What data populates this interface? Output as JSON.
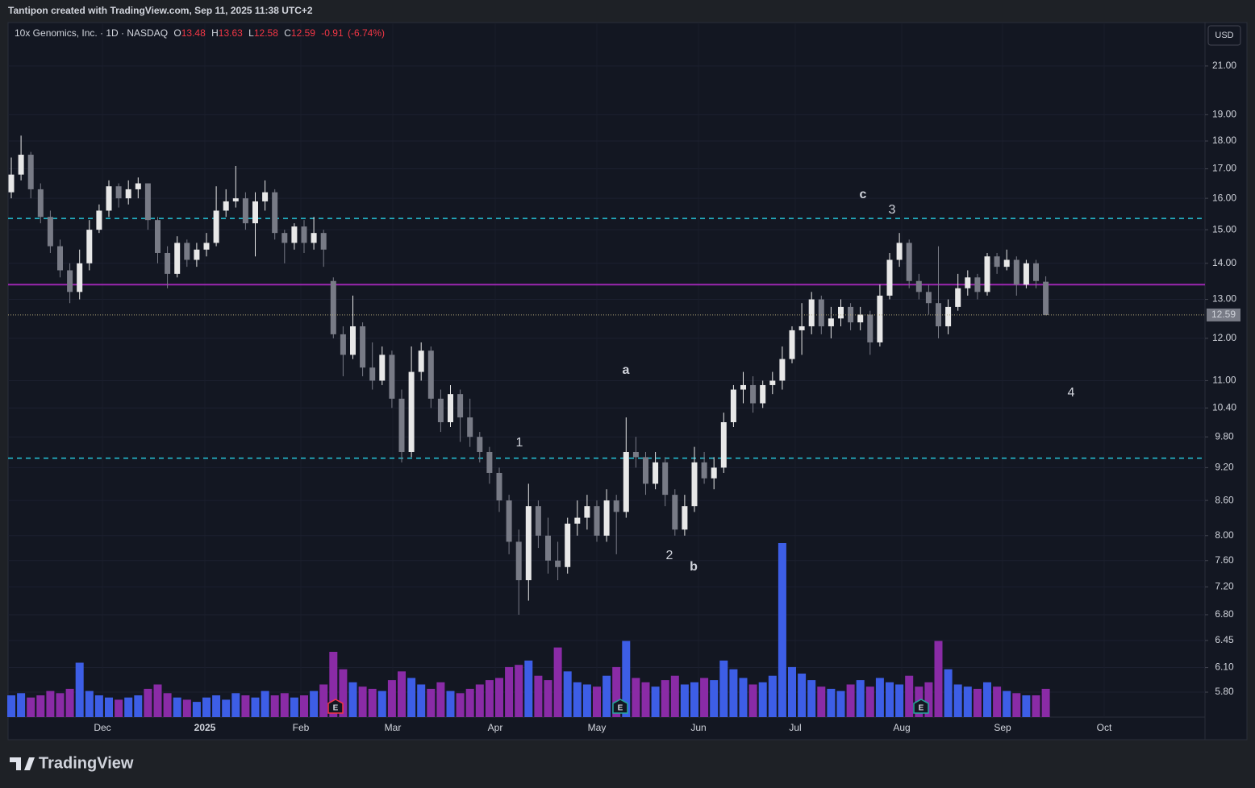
{
  "header": "Tantipon created with TradingView.com, Sep 11, 2025 11:38 UTC+2",
  "currency": "USD",
  "footer_logo": "TradingView",
  "chart_data": {
    "type": "candlestick",
    "symbol": "10x Genomics, Inc. · 1D · NASDAQ",
    "legend": {
      "open_label": "O",
      "open": 13.48,
      "high_label": "H",
      "high": 13.63,
      "low_label": "L",
      "low": 12.58,
      "close_label": "C",
      "close": 12.59,
      "change": -0.91,
      "change_pct": {
        "value": -6.74,
        "label": "(-6.74%)"
      }
    },
    "last_price": 12.59,
    "log_scale": true,
    "grid": true,
    "up_color": "#e8e8e8",
    "down_color": "#787b86",
    "volume_up_color": "#3d5ee6",
    "volume_down_color": "#8a2ba6",
    "ylim": [
      5.51,
      22.96
    ],
    "yticks": [
      {
        "value": 21,
        "label": "21.00"
      },
      {
        "value": 19,
        "label": "19.00"
      },
      {
        "value": 18,
        "label": "18.00"
      },
      {
        "value": 17,
        "label": "17.00"
      },
      {
        "value": 16,
        "label": "16.00"
      },
      {
        "value": 15,
        "label": "15.00"
      },
      {
        "value": 14,
        "label": "14.00"
      },
      {
        "value": 13,
        "label": "13.00"
      },
      {
        "value": 12,
        "label": "12.00"
      },
      {
        "value": 11,
        "label": "11.00"
      },
      {
        "value": 10.4,
        "label": "10.40"
      },
      {
        "value": 9.8,
        "label": "9.80"
      },
      {
        "value": 9.2,
        "label": "9.20"
      },
      {
        "value": 8.6,
        "label": "8.60"
      },
      {
        "value": 8,
        "label": "8.00"
      },
      {
        "value": 7.6,
        "label": "7.60"
      },
      {
        "value": 7.2,
        "label": "7.20"
      },
      {
        "value": 6.8,
        "label": "6.80"
      },
      {
        "value": 6.45,
        "label": "6.45"
      },
      {
        "value": 6.1,
        "label": "6.10"
      },
      {
        "value": 5.8,
        "label": "5.80"
      }
    ],
    "x_labels": [
      "Dec",
      "2025",
      "Feb",
      "Mar",
      "Apr",
      "May",
      "Jun",
      "Jul",
      "Aug",
      "Sep",
      "Oct"
    ],
    "levels": [
      {
        "value": 15.35,
        "color": "#26c6da",
        "style": "dashed"
      },
      {
        "value": 9.38,
        "color": "#26c6da",
        "style": "dashed"
      },
      {
        "value": 13.4,
        "color": "#9c27b0",
        "style": "solid"
      }
    ],
    "annotations": [
      {
        "text": "a",
        "color": "#f7d51d"
      },
      {
        "text": "b",
        "color": "#f7d51d"
      },
      {
        "text": "c",
        "color": "#f7d51d"
      },
      {
        "text": "1",
        "color": "#8a8d96"
      },
      {
        "text": "2",
        "color": "#8a8d96"
      },
      {
        "text": "3",
        "color": "#8a8d96"
      },
      {
        "text": "4",
        "color": "#8a8d96"
      }
    ],
    "earnings": [
      "E",
      "E",
      "E"
    ],
    "ohlc": [
      [
        16.2,
        17.4,
        16.0,
        16.8
      ],
      [
        16.8,
        18.2,
        16.6,
        17.5
      ],
      [
        17.5,
        17.6,
        16.0,
        16.3
      ],
      [
        16.3,
        16.5,
        15.2,
        15.4
      ],
      [
        15.4,
        15.6,
        14.3,
        14.5
      ],
      [
        14.5,
        14.7,
        13.6,
        13.8
      ],
      [
        13.8,
        14.0,
        12.9,
        13.2
      ],
      [
        13.2,
        14.4,
        13.0,
        14.0
      ],
      [
        14.0,
        15.3,
        13.8,
        15.0
      ],
      [
        15.0,
        15.8,
        14.9,
        15.6
      ],
      [
        15.6,
        16.6,
        15.4,
        16.4
      ],
      [
        16.4,
        16.5,
        15.7,
        16.0
      ],
      [
        16.0,
        16.6,
        15.8,
        16.3
      ],
      [
        16.3,
        16.7,
        16.0,
        16.5
      ],
      [
        16.5,
        16.5,
        15.0,
        15.3
      ],
      [
        15.3,
        15.4,
        14.0,
        14.3
      ],
      [
        14.3,
        14.5,
        13.3,
        13.7
      ],
      [
        13.7,
        14.8,
        13.6,
        14.6
      ],
      [
        14.6,
        14.7,
        13.9,
        14.1
      ],
      [
        14.1,
        14.6,
        13.9,
        14.4
      ],
      [
        14.4,
        14.9,
        14.2,
        14.6
      ],
      [
        14.6,
        16.4,
        14.5,
        15.6
      ],
      [
        15.6,
        16.3,
        15.4,
        15.9
      ],
      [
        15.9,
        17.1,
        15.7,
        16.0
      ],
      [
        16.0,
        16.2,
        15.0,
        15.2
      ],
      [
        15.2,
        16.2,
        14.2,
        15.9
      ],
      [
        15.9,
        16.6,
        15.6,
        16.2
      ],
      [
        16.2,
        16.3,
        14.7,
        14.9
      ],
      [
        14.9,
        15.0,
        14.0,
        14.6
      ],
      [
        14.6,
        15.2,
        14.4,
        15.1
      ],
      [
        15.1,
        15.3,
        14.3,
        14.6
      ],
      [
        14.6,
        15.4,
        14.4,
        14.9
      ],
      [
        14.9,
        15.0,
        13.9,
        14.4
      ],
      [
        13.5,
        13.6,
        12.0,
        12.1
      ],
      [
        12.1,
        12.3,
        11.1,
        11.6
      ],
      [
        11.6,
        13.1,
        11.5,
        12.3
      ],
      [
        12.3,
        12.4,
        11.1,
        11.3
      ],
      [
        11.3,
        11.9,
        10.8,
        11.0
      ],
      [
        11.0,
        11.8,
        10.9,
        11.6
      ],
      [
        11.6,
        11.7,
        10.4,
        10.6
      ],
      [
        10.6,
        10.8,
        9.3,
        9.5
      ],
      [
        9.5,
        11.8,
        9.4,
        11.2
      ],
      [
        11.2,
        11.9,
        11.0,
        11.7
      ],
      [
        11.7,
        11.8,
        10.4,
        10.6
      ],
      [
        10.6,
        10.8,
        9.9,
        10.1
      ],
      [
        10.1,
        10.9,
        10.0,
        10.7
      ],
      [
        10.7,
        10.8,
        9.7,
        10.2
      ],
      [
        10.2,
        10.6,
        9.6,
        9.8
      ],
      [
        9.8,
        9.9,
        9.3,
        9.5
      ],
      [
        9.5,
        9.6,
        8.9,
        9.1
      ],
      [
        9.1,
        9.2,
        8.4,
        8.6
      ],
      [
        8.6,
        8.7,
        7.7,
        7.9
      ],
      [
        7.9,
        8.1,
        6.8,
        7.3
      ],
      [
        7.3,
        8.9,
        7.0,
        8.5
      ],
      [
        8.5,
        8.6,
        7.8,
        8.0
      ],
      [
        8.0,
        8.3,
        7.4,
        7.6
      ],
      [
        7.6,
        7.9,
        7.3,
        7.5
      ],
      [
        7.5,
        8.3,
        7.4,
        8.2
      ],
      [
        8.2,
        8.6,
        8.0,
        8.3
      ],
      [
        8.3,
        8.7,
        8.1,
        8.5
      ],
      [
        8.5,
        8.6,
        7.9,
        8.0
      ],
      [
        8.0,
        8.8,
        7.9,
        8.6
      ],
      [
        8.6,
        8.7,
        7.7,
        8.4
      ],
      [
        8.4,
        10.2,
        8.3,
        9.5
      ],
      [
        9.5,
        9.8,
        9.2,
        9.4
      ],
      [
        9.4,
        9.5,
        8.7,
        8.9
      ],
      [
        8.9,
        9.5,
        8.8,
        9.3
      ],
      [
        9.3,
        9.4,
        8.5,
        8.7
      ],
      [
        8.7,
        8.8,
        8.0,
        8.1
      ],
      [
        8.1,
        8.7,
        8.0,
        8.5
      ],
      [
        8.5,
        9.6,
        8.4,
        9.3
      ],
      [
        9.3,
        9.5,
        8.9,
        9.0
      ],
      [
        9.0,
        9.4,
        8.8,
        9.2
      ],
      [
        9.2,
        10.3,
        9.1,
        10.1
      ],
      [
        10.1,
        10.9,
        10.0,
        10.8
      ],
      [
        10.8,
        11.2,
        10.5,
        10.9
      ],
      [
        10.9,
        11.1,
        10.3,
        10.5
      ],
      [
        10.5,
        11.0,
        10.4,
        10.9
      ],
      [
        10.9,
        11.2,
        10.7,
        11.0
      ],
      [
        11.0,
        11.8,
        10.8,
        11.5
      ],
      [
        11.5,
        12.3,
        11.4,
        12.2
      ],
      [
        12.2,
        12.9,
        11.6,
        12.3
      ],
      [
        12.3,
        13.2,
        12.1,
        13.0
      ],
      [
        13.0,
        13.1,
        12.1,
        12.3
      ],
      [
        12.3,
        12.8,
        12.0,
        12.5
      ],
      [
        12.5,
        13.0,
        12.3,
        12.8
      ],
      [
        12.8,
        12.9,
        12.2,
        12.4
      ],
      [
        12.4,
        12.8,
        12.2,
        12.6
      ],
      [
        12.6,
        12.7,
        11.6,
        11.9
      ],
      [
        11.9,
        13.4,
        11.8,
        13.1
      ],
      [
        13.1,
        14.3,
        13.0,
        14.1
      ],
      [
        14.1,
        14.9,
        13.9,
        14.6
      ],
      [
        14.6,
        14.7,
        13.3,
        13.5
      ],
      [
        13.5,
        13.7,
        13.0,
        13.2
      ],
      [
        13.2,
        13.4,
        12.6,
        12.9
      ],
      [
        12.9,
        14.5,
        12.0,
        12.3
      ],
      [
        12.3,
        13.0,
        12.1,
        12.8
      ],
      [
        12.8,
        13.7,
        12.7,
        13.3
      ],
      [
        13.3,
        13.8,
        13.1,
        13.6
      ],
      [
        13.6,
        13.7,
        13.0,
        13.2
      ],
      [
        13.2,
        14.3,
        13.1,
        14.2
      ],
      [
        14.2,
        14.3,
        13.7,
        13.9
      ],
      [
        13.9,
        14.4,
        13.8,
        14.1
      ],
      [
        14.1,
        14.2,
        13.1,
        13.4
      ],
      [
        13.4,
        14.1,
        13.3,
        14.0
      ],
      [
        14.0,
        14.1,
        13.3,
        13.5
      ],
      [
        13.48,
        13.63,
        12.58,
        12.59
      ]
    ],
    "volume": [
      1.0,
      1.1,
      0.9,
      1.0,
      1.2,
      1.1,
      1.3,
      2.5,
      1.2,
      1.0,
      0.9,
      0.8,
      0.9,
      1.0,
      1.3,
      1.5,
      1.1,
      0.9,
      0.8,
      0.7,
      0.9,
      1.0,
      0.8,
      1.1,
      1.0,
      0.9,
      1.2,
      1.0,
      1.1,
      0.9,
      1.0,
      1.2,
      1.5,
      3.0,
      2.2,
      1.6,
      1.4,
      1.3,
      1.2,
      1.7,
      2.1,
      1.8,
      1.5,
      1.3,
      1.6,
      1.2,
      1.1,
      1.3,
      1.5,
      1.7,
      1.8,
      2.3,
      2.4,
      2.6,
      1.9,
      1.7,
      3.2,
      2.1,
      1.6,
      1.5,
      1.4,
      1.9,
      2.3,
      3.5,
      1.8,
      1.6,
      1.4,
      1.7,
      1.9,
      1.5,
      1.6,
      1.8,
      1.7,
      2.6,
      2.2,
      1.8,
      1.5,
      1.6,
      1.9,
      8.0,
      2.3,
      2.0,
      1.7,
      1.4,
      1.3,
      1.2,
      1.5,
      1.7,
      1.4,
      1.8,
      1.6,
      1.5,
      1.9,
      1.4,
      1.6,
      3.5,
      2.2,
      1.5,
      1.4,
      1.3,
      1.6,
      1.4,
      1.2,
      1.1,
      1.0,
      1.0,
      1.3
    ]
  }
}
